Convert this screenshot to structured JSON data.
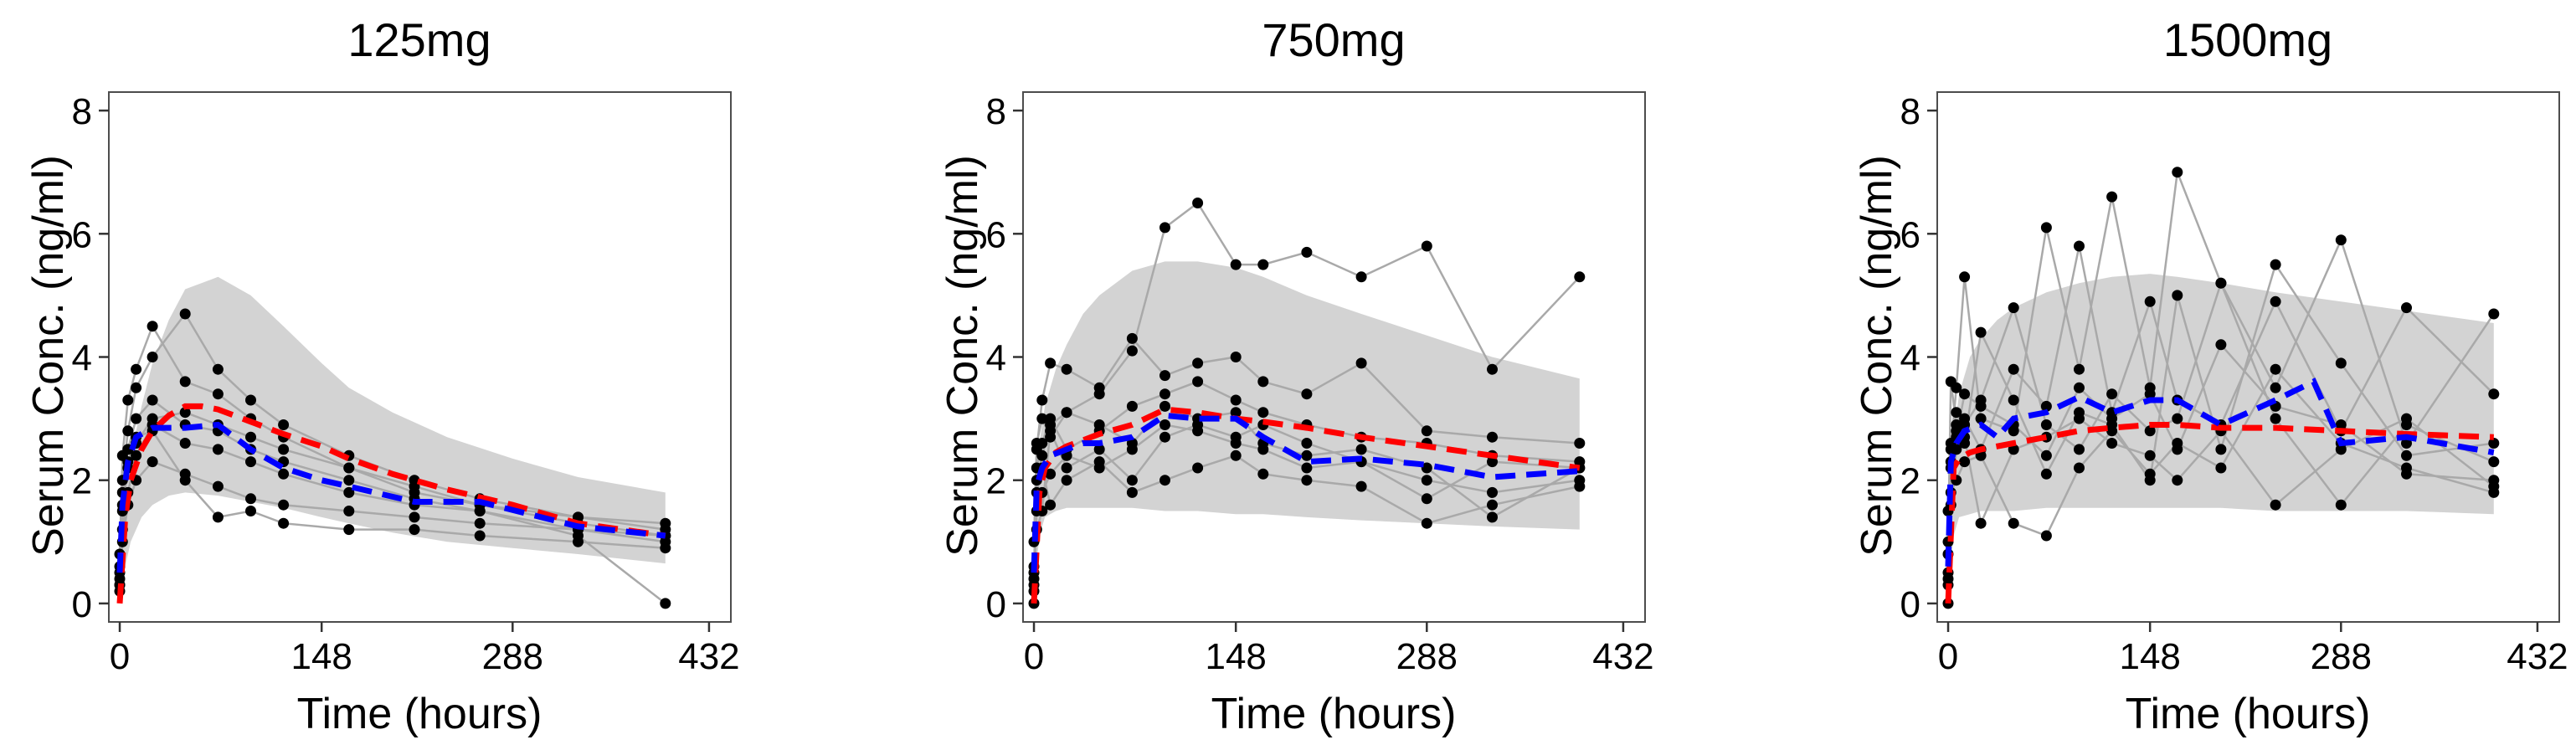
{
  "chart_data": [
    {
      "type": "line",
      "title": "125mg",
      "xlabel": "Time (hours)",
      "ylabel": "Serum Conc. (ng/ml)",
      "xlim": [
        -8,
        448
      ],
      "ylim": [
        -0.3,
        8.3
      ],
      "xticks": [
        0,
        148,
        288,
        432
      ],
      "yticks": [
        0,
        2,
        4,
        6,
        8
      ],
      "band": {
        "x": [
          0,
          8,
          16,
          24,
          36,
          48,
          72,
          96,
          120,
          148,
          168,
          200,
          240,
          288,
          336,
          400
        ],
        "lower": [
          0.2,
          1.0,
          1.4,
          1.6,
          1.75,
          1.8,
          1.75,
          1.65,
          1.55,
          1.4,
          1.3,
          1.15,
          1.0,
          0.9,
          0.8,
          0.65
        ],
        "upper": [
          1.0,
          2.4,
          3.2,
          3.9,
          4.6,
          5.1,
          5.3,
          5.0,
          4.5,
          3.9,
          3.5,
          3.1,
          2.7,
          2.35,
          2.05,
          1.8
        ]
      },
      "subjects": [
        {
          "x": [
            0,
            2,
            6,
            12,
            24,
            48,
            72,
            96,
            120,
            168,
            216,
            264,
            336,
            400
          ],
          "y": [
            0.3,
            1.5,
            2.2,
            2.6,
            3.0,
            3.1,
            2.9,
            2.7,
            2.5,
            2.2,
            1.9,
            1.6,
            1.3,
            1.1
          ]
        },
        {
          "x": [
            0,
            2,
            6,
            12,
            24,
            48,
            72,
            96,
            120,
            168,
            216,
            264,
            336,
            400
          ],
          "y": [
            0.5,
            2.0,
            2.8,
            3.5,
            4.0,
            4.7,
            3.8,
            3.3,
            2.9,
            2.4,
            2.0,
            1.7,
            1.4,
            1.3
          ]
        },
        {
          "x": [
            0,
            2,
            6,
            12,
            24,
            48,
            72,
            96,
            120,
            168,
            216,
            264,
            336,
            400
          ],
          "y": [
            0.4,
            1.2,
            1.8,
            2.4,
            2.9,
            2.6,
            2.5,
            2.3,
            2.1,
            1.8,
            1.6,
            1.5,
            1.2,
            1.0
          ]
        },
        {
          "x": [
            0,
            2,
            6,
            12,
            24,
            48,
            72,
            96,
            120,
            168,
            216,
            264,
            336,
            400
          ],
          "y": [
            0.8,
            2.4,
            3.3,
            3.8,
            4.5,
            3.6,
            3.4,
            3.0,
            2.7,
            2.2,
            1.8,
            1.6,
            1.4,
            1.2
          ]
        },
        {
          "x": [
            0,
            2,
            6,
            12,
            24,
            48,
            72,
            96,
            120,
            168,
            216,
            264,
            336,
            400
          ],
          "y": [
            0.2,
            1.0,
            1.6,
            2.0,
            2.3,
            2.1,
            1.9,
            1.7,
            1.6,
            1.5,
            1.4,
            1.3,
            1.2,
            1.1
          ]
        },
        {
          "x": [
            0,
            2,
            6,
            12,
            24,
            48,
            72,
            96,
            120,
            168,
            216,
            264,
            336,
            400
          ],
          "y": [
            0.6,
            1.8,
            2.5,
            3.0,
            3.3,
            2.9,
            2.8,
            2.5,
            2.3,
            2.0,
            1.7,
            1.5,
            1.1,
            0.0
          ]
        },
        {
          "x": [
            0,
            2,
            6,
            12,
            24,
            48,
            72,
            96,
            120,
            168,
            216,
            264,
            336,
            400
          ],
          "y": [
            0.3,
            1.6,
            2.3,
            2.7,
            2.8,
            2.0,
            1.4,
            1.5,
            1.3,
            1.2,
            1.2,
            1.1,
            1.0,
            0.9
          ]
        }
      ],
      "pop_pred": {
        "x": [
          0,
          4,
          8,
          16,
          24,
          36,
          48,
          60,
          72,
          96,
          120,
          148,
          168,
          200,
          240,
          288,
          336,
          400
        ],
        "y": [
          0.0,
          1.4,
          2.0,
          2.5,
          2.8,
          3.05,
          3.2,
          3.2,
          3.15,
          2.95,
          2.75,
          2.55,
          2.35,
          2.1,
          1.85,
          1.6,
          1.3,
          1.1
        ]
      },
      "mean_obs": {
        "x": [
          0,
          2,
          6,
          12,
          24,
          48,
          72,
          96,
          120,
          148,
          168,
          216,
          264,
          336,
          400
        ],
        "y": [
          0.5,
          1.6,
          2.3,
          2.7,
          2.85,
          2.85,
          2.9,
          2.5,
          2.2,
          2.0,
          1.9,
          1.65,
          1.65,
          1.25,
          1.1
        ]
      }
    },
    {
      "type": "line",
      "title": "750mg",
      "xlabel": "Time (hours)",
      "ylabel": "Serum Conc. (ng/ml)",
      "xlim": [
        -8,
        448
      ],
      "ylim": [
        -0.3,
        8.3
      ],
      "xticks": [
        0,
        148,
        288,
        432
      ],
      "yticks": [
        0,
        2,
        4,
        6,
        8
      ],
      "band": {
        "x": [
          0,
          4,
          8,
          16,
          24,
          36,
          48,
          72,
          96,
          120,
          148,
          168,
          200,
          240,
          288,
          336,
          400
        ],
        "lower": [
          0.2,
          1.1,
          1.4,
          1.5,
          1.55,
          1.55,
          1.55,
          1.55,
          1.5,
          1.5,
          1.45,
          1.45,
          1.4,
          1.35,
          1.3,
          1.25,
          1.2
        ],
        "upper": [
          1.2,
          2.6,
          3.2,
          3.8,
          4.2,
          4.7,
          5.0,
          5.4,
          5.55,
          5.55,
          5.45,
          5.3,
          5.0,
          4.7,
          4.35,
          4.0,
          3.65
        ]
      },
      "subjects": [
        {
          "x": [
            0,
            2,
            6,
            12,
            24,
            48,
            72,
            96,
            120,
            148,
            168,
            200,
            240,
            288,
            336,
            400
          ],
          "y": [
            0.3,
            2.0,
            2.4,
            2.9,
            3.1,
            3.4,
            4.1,
            6.1,
            6.5,
            5.5,
            5.5,
            5.7,
            5.3,
            5.8,
            3.8,
            5.3
          ]
        },
        {
          "x": [
            0,
            2,
            6,
            12,
            24,
            48,
            72,
            96,
            120,
            148,
            168,
            200,
            240,
            288,
            336,
            400
          ],
          "y": [
            0.5,
            2.2,
            2.6,
            3.0,
            2.5,
            2.8,
            3.2,
            3.4,
            3.6,
            3.3,
            3.1,
            2.9,
            2.7,
            2.6,
            2.4,
            2.3
          ]
        },
        {
          "x": [
            0,
            2,
            6,
            12,
            24,
            48,
            72,
            96,
            120,
            148,
            168,
            200,
            240,
            288,
            336,
            400
          ],
          "y": [
            0.2,
            1.5,
            1.8,
            2.1,
            2.4,
            2.2,
            2.5,
            2.9,
            2.8,
            2.6,
            2.5,
            2.2,
            2.3,
            2.0,
            1.8,
            2.0
          ]
        },
        {
          "x": [
            0,
            2,
            6,
            12,
            24,
            48,
            72,
            96,
            120,
            148,
            168,
            200,
            240,
            288,
            336,
            400
          ],
          "y": [
            1.0,
            2.5,
            3.3,
            3.9,
            3.8,
            3.5,
            4.3,
            3.7,
            3.9,
            4.0,
            3.6,
            3.4,
            3.9,
            2.8,
            2.7,
            2.6
          ]
        },
        {
          "x": [
            0,
            2,
            6,
            12,
            24,
            48,
            72,
            96,
            120,
            148,
            168,
            200,
            240,
            288,
            336,
            400
          ],
          "y": [
            0.4,
            1.8,
            2.2,
            1.6,
            2.0,
            2.3,
            1.8,
            2.0,
            2.2,
            2.4,
            2.1,
            2.0,
            1.9,
            1.3,
            1.6,
            1.9
          ]
        },
        {
          "x": [
            0,
            2,
            6,
            12,
            24,
            48,
            72,
            96,
            120,
            148,
            168,
            200,
            240,
            288,
            336,
            400
          ],
          "y": [
            0.0,
            2.6,
            3.0,
            2.7,
            3.1,
            2.9,
            2.6,
            3.2,
            3.0,
            3.1,
            2.6,
            2.4,
            2.5,
            2.2,
            1.4,
            2.2
          ]
        },
        {
          "x": [
            0,
            2,
            6,
            12,
            24,
            48,
            72,
            96,
            120,
            148,
            168,
            200,
            240,
            288,
            336,
            400
          ],
          "y": [
            0.6,
            1.2,
            1.5,
            2.8,
            2.2,
            2.5,
            2.0,
            2.7,
            2.9,
            2.7,
            2.9,
            2.6,
            2.3,
            1.7,
            2.3,
            2.2
          ]
        }
      ],
      "pop_pred": {
        "x": [
          0,
          4,
          8,
          16,
          24,
          36,
          48,
          72,
          96,
          120,
          148,
          168,
          200,
          240,
          288,
          336,
          400
        ],
        "y": [
          0.0,
          1.8,
          2.2,
          2.45,
          2.55,
          2.65,
          2.75,
          2.9,
          3.15,
          3.1,
          3.0,
          2.95,
          2.85,
          2.7,
          2.55,
          2.4,
          2.2
        ]
      },
      "mean_obs": {
        "x": [
          0,
          2,
          6,
          12,
          24,
          36,
          48,
          72,
          96,
          120,
          148,
          168,
          200,
          240,
          288,
          336,
          400
        ],
        "y": [
          0.5,
          1.9,
          2.2,
          2.4,
          2.5,
          2.6,
          2.6,
          2.7,
          3.05,
          3.0,
          3.0,
          2.7,
          2.3,
          2.35,
          2.25,
          2.05,
          2.15
        ]
      }
    },
    {
      "type": "line",
      "title": "1500mg",
      "xlabel": "Time (hours)",
      "ylabel": "Serum Conc. (ng/ml)",
      "xlim": [
        -8,
        448
      ],
      "ylim": [
        -0.3,
        8.3
      ],
      "xticks": [
        0,
        148,
        288,
        432
      ],
      "yticks": [
        0,
        2,
        4,
        6,
        8
      ],
      "band": {
        "x": [
          0,
          4,
          8,
          16,
          24,
          36,
          48,
          72,
          96,
          120,
          148,
          168,
          200,
          240,
          288,
          336,
          400
        ],
        "lower": [
          0.2,
          1.1,
          1.4,
          1.45,
          1.5,
          1.5,
          1.5,
          1.55,
          1.55,
          1.55,
          1.55,
          1.55,
          1.55,
          1.5,
          1.5,
          1.5,
          1.45
        ],
        "upper": [
          1.2,
          2.7,
          3.4,
          4.0,
          4.3,
          4.6,
          4.8,
          5.05,
          5.2,
          5.3,
          5.35,
          5.3,
          5.2,
          5.05,
          4.9,
          4.75,
          4.55
        ]
      },
      "subjects": [
        {
          "x": [
            0,
            2,
            6,
            12,
            24,
            48,
            72,
            96,
            120,
            148,
            168,
            200,
            240,
            288,
            336,
            400
          ],
          "y": [
            0.0,
            2.5,
            3.5,
            5.3,
            3.0,
            2.8,
            6.1,
            3.8,
            6.6,
            3.5,
            7.0,
            5.2,
            3.5,
            5.9,
            2.6,
            4.7
          ]
        },
        {
          "x": [
            0,
            2,
            6,
            12,
            24,
            48,
            72,
            96,
            120,
            148,
            168,
            200,
            240,
            288,
            336,
            400
          ],
          "y": [
            0.8,
            2.2,
            2.8,
            3.0,
            2.5,
            3.8,
            3.2,
            5.8,
            3.1,
            4.9,
            3.3,
            2.9,
            4.9,
            2.8,
            4.8,
            3.4
          ]
        },
        {
          "x": [
            0,
            2,
            6,
            12,
            24,
            48,
            72,
            96,
            120,
            148,
            168,
            200,
            240,
            288,
            336,
            400
          ],
          "y": [
            1.5,
            2.6,
            3.1,
            2.7,
            1.3,
            2.5,
            2.7,
            3.0,
            2.6,
            2.4,
            2.0,
            2.8,
            1.6,
            2.5,
            3.0,
            1.9
          ]
        },
        {
          "x": [
            0,
            2,
            6,
            12,
            24,
            48,
            72,
            96,
            120,
            148,
            168,
            200,
            240,
            288,
            336,
            400
          ],
          "y": [
            0.3,
            1.8,
            2.0,
            2.3,
            2.4,
            1.3,
            1.1,
            2.2,
            2.8,
            2.1,
            2.6,
            2.2,
            3.8,
            2.6,
            2.2,
            1.8
          ]
        },
        {
          "x": [
            0,
            2,
            6,
            12,
            24,
            48,
            72,
            96,
            120,
            148,
            168,
            200,
            240,
            288,
            336,
            400
          ],
          "y": [
            0.5,
            2.3,
            2.7,
            3.4,
            3.2,
            2.9,
            2.4,
            3.5,
            3.0,
            3.4,
            2.5,
            4.2,
            3.2,
            2.9,
            2.1,
            2.0
          ]
        },
        {
          "x": [
            0,
            2,
            6,
            12,
            24,
            48,
            72,
            96,
            120,
            148,
            168,
            200,
            240,
            288,
            336,
            400
          ],
          "y": [
            1.0,
            3.6,
            2.9,
            2.6,
            4.4,
            3.3,
            2.1,
            3.1,
            2.9,
            2.0,
            5.0,
            2.5,
            5.5,
            3.9,
            2.4,
            2.6
          ]
        },
        {
          "x": [
            0,
            2,
            6,
            12,
            24,
            48,
            72,
            96,
            120,
            148,
            168,
            200,
            240,
            288,
            336,
            400
          ],
          "y": [
            0.4,
            1.6,
            2.5,
            2.9,
            3.3,
            4.8,
            2.9,
            2.5,
            3.4,
            2.8,
            3.0,
            5.2,
            3.0,
            1.6,
            2.9,
            2.3
          ]
        }
      ],
      "pop_pred": {
        "x": [
          0,
          4,
          8,
          16,
          24,
          36,
          48,
          72,
          96,
          120,
          148,
          168,
          200,
          240,
          288,
          336,
          400
        ],
        "y": [
          0.0,
          2.2,
          2.35,
          2.45,
          2.5,
          2.55,
          2.6,
          2.7,
          2.8,
          2.85,
          2.9,
          2.9,
          2.85,
          2.85,
          2.8,
          2.75,
          2.7
        ]
      },
      "mean_obs": {
        "x": [
          0,
          2,
          6,
          12,
          24,
          36,
          48,
          72,
          96,
          120,
          148,
          168,
          200,
          240,
          268,
          288,
          336,
          400
        ],
        "y": [
          0.6,
          2.3,
          2.6,
          2.8,
          2.9,
          2.7,
          3.0,
          3.1,
          3.35,
          3.1,
          3.3,
          3.3,
          2.9,
          3.3,
          3.6,
          2.6,
          2.7,
          2.45
        ]
      }
    }
  ]
}
